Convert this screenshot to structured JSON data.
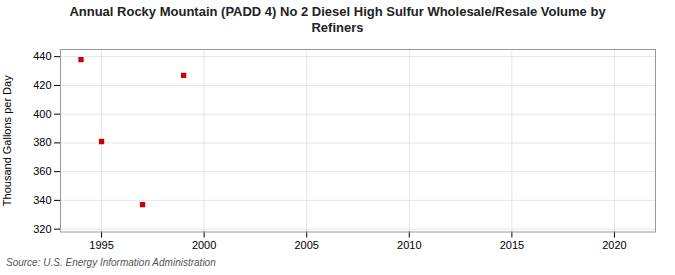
{
  "chart_data": {
    "type": "scatter",
    "title": "Annual Rocky Mountain (PADD 4) No 2 Diesel High Sulfur Wholesale/Resale Volume by\nRefiners",
    "ylabel": "Thousand Gallons per Day",
    "source": "Source: U.S. Energy Information Administration",
    "x": [
      1994,
      1995,
      1997,
      1999
    ],
    "values": [
      438,
      381,
      337,
      427
    ],
    "color": "#cc0000",
    "marker": "square",
    "xlim": [
      1993,
      2022
    ],
    "ylim": [
      318,
      445
    ],
    "xticks": [
      1995,
      2000,
      2005,
      2010,
      2015,
      2020
    ],
    "yticks": [
      320,
      340,
      360,
      380,
      400,
      420,
      440
    ],
    "grid": true
  }
}
